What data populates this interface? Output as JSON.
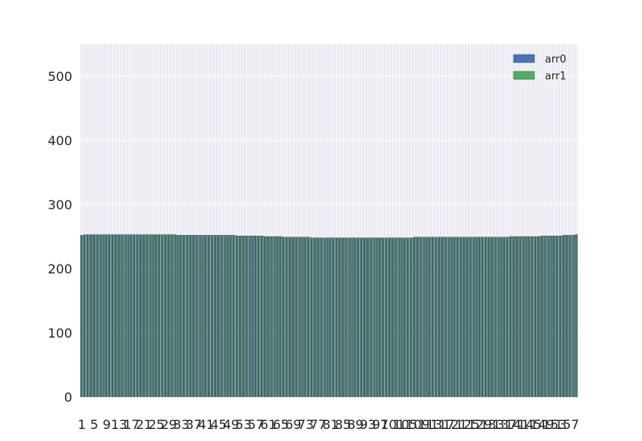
{
  "chart_data": {
    "type": "bar",
    "title": "",
    "xlabel": "",
    "ylabel": "",
    "ylim": [
      0,
      550
    ],
    "yticks": [
      0,
      100,
      200,
      300,
      400,
      500
    ],
    "grid": true,
    "legend_position": "top-right",
    "x_tick_labels_visible": "overlapping, illegible (many categories)",
    "category_count": 160,
    "series": [
      {
        "name": "arr0",
        "color": "#4c72b0",
        "values": [
          252,
          253,
          253,
          253,
          253,
          253,
          253,
          253,
          253,
          253,
          253,
          253,
          253,
          253,
          253,
          253,
          253,
          253,
          253,
          253,
          253,
          253,
          253,
          253,
          253,
          253,
          253,
          253,
          253,
          253,
          253,
          252,
          252,
          252,
          252,
          252,
          252,
          252,
          252,
          252,
          252,
          252,
          252,
          252,
          252,
          252,
          252,
          252,
          252,
          252,
          251,
          251,
          251,
          251,
          251,
          251,
          251,
          251,
          251,
          250,
          250,
          250,
          250,
          250,
          250,
          249,
          249,
          249,
          249,
          249,
          249,
          249,
          249,
          249,
          248,
          248,
          248,
          248,
          248,
          248,
          248,
          248,
          248,
          248,
          248,
          248,
          248,
          248,
          248,
          248,
          248,
          248,
          248,
          248,
          248,
          248,
          248,
          248,
          248,
          248,
          248,
          248,
          248,
          248,
          248,
          248,
          248,
          249,
          249,
          249,
          249,
          249,
          249,
          249,
          249,
          249,
          249,
          249,
          249,
          249,
          249,
          249,
          249,
          249,
          249,
          249,
          249,
          249,
          249,
          249,
          249,
          249,
          249,
          249,
          249,
          249,
          249,
          249,
          250,
          250,
          250,
          250,
          250,
          250,
          250,
          250,
          250,
          250,
          251,
          251,
          251,
          251,
          251,
          251,
          251,
          252,
          252,
          252,
          252,
          253
        ]
      },
      {
        "name": "arr1",
        "color": "#55a868",
        "values": [
          252,
          253,
          253,
          253,
          253,
          253,
          253,
          253,
          253,
          253,
          253,
          253,
          253,
          253,
          253,
          253,
          253,
          253,
          253,
          253,
          253,
          253,
          253,
          253,
          253,
          253,
          253,
          253,
          253,
          253,
          253,
          252,
          252,
          252,
          252,
          252,
          252,
          252,
          252,
          252,
          252,
          252,
          252,
          252,
          252,
          252,
          252,
          252,
          252,
          252,
          251,
          251,
          251,
          251,
          251,
          251,
          251,
          251,
          251,
          250,
          250,
          250,
          250,
          250,
          250,
          249,
          249,
          249,
          249,
          249,
          249,
          249,
          249,
          249,
          248,
          248,
          248,
          248,
          248,
          248,
          248,
          248,
          248,
          248,
          248,
          248,
          248,
          248,
          248,
          248,
          248,
          248,
          248,
          248,
          248,
          248,
          248,
          248,
          248,
          248,
          248,
          248,
          248,
          248,
          248,
          248,
          248,
          249,
          249,
          249,
          249,
          249,
          249,
          249,
          249,
          249,
          249,
          249,
          249,
          249,
          249,
          249,
          249,
          249,
          249,
          249,
          249,
          249,
          249,
          249,
          249,
          249,
          249,
          249,
          249,
          249,
          249,
          249,
          250,
          250,
          250,
          250,
          250,
          250,
          250,
          250,
          250,
          250,
          251,
          251,
          251,
          251,
          251,
          251,
          251,
          252,
          252,
          252,
          252,
          253
        ]
      }
    ]
  }
}
